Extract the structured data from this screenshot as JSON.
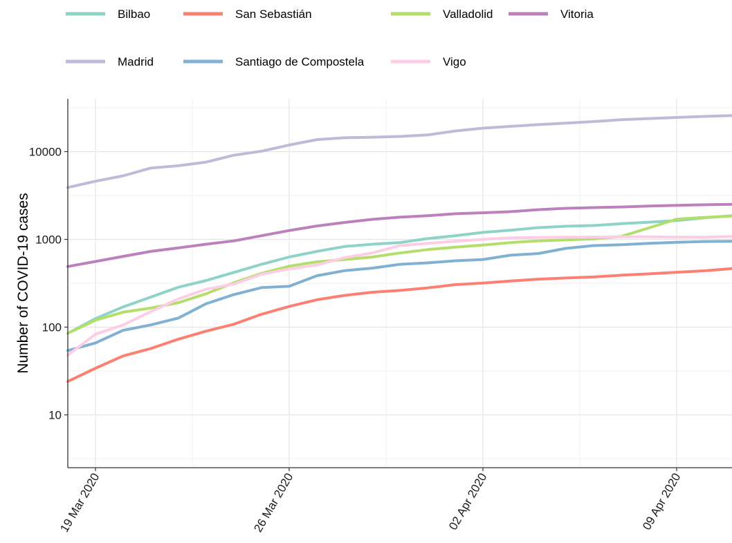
{
  "chart_data": {
    "type": "line",
    "title": "",
    "xlabel": "",
    "ylabel": "Number of COVID-19 cases",
    "y_scale": "log10",
    "ylim": [
      2.5,
      40000
    ],
    "xlim": [
      "2020-03-18",
      "2020-04-11"
    ],
    "grid": true,
    "legend_position": "top",
    "x_ticks": [
      "2020-03-19",
      "2020-03-26",
      "2020-04-02",
      "2020-04-09"
    ],
    "x_tick_labels": [
      "19 Mar 2020",
      "26 Mar 2020",
      "02 Apr 2020",
      "09 Apr 2020"
    ],
    "y_ticks": [
      10,
      100,
      1000,
      10000
    ],
    "y_tick_labels": [
      "10",
      "100",
      "1000",
      "10000"
    ],
    "dates": [
      "2020-03-18",
      "2020-03-19",
      "2020-03-20",
      "2020-03-21",
      "2020-03-22",
      "2020-03-23",
      "2020-03-24",
      "2020-03-25",
      "2020-03-26",
      "2020-03-27",
      "2020-03-28",
      "2020-03-29",
      "2020-03-30",
      "2020-03-31",
      "2020-04-01",
      "2020-04-02",
      "2020-04-03",
      "2020-04-04",
      "2020-04-05",
      "2020-04-06",
      "2020-04-07",
      "2020-04-08",
      "2020-04-09",
      "2020-04-10",
      "2020-04-11"
    ],
    "series": [
      {
        "name": "Bilbao",
        "color": "#8dd3c7",
        "values": [
          85,
          125,
          170,
          220,
          285,
          340,
          420,
          520,
          630,
          730,
          830,
          880,
          920,
          1020,
          1100,
          1200,
          1270,
          1360,
          1410,
          1440,
          1510,
          1570,
          1640,
          1760,
          1860
        ]
      },
      {
        "name": "San Sebastián",
        "color": "#fb8072",
        "values": [
          24,
          34,
          47,
          57,
          73,
          90,
          108,
          140,
          172,
          205,
          230,
          250,
          262,
          280,
          305,
          318,
          335,
          352,
          363,
          373,
          390,
          405,
          422,
          438,
          465
        ]
      },
      {
        "name": "Valladolid",
        "color": "#b3de69",
        "values": [
          85,
          120,
          148,
          165,
          190,
          240,
          320,
          410,
          495,
          555,
          590,
          630,
          700,
          765,
          815,
          860,
          920,
          960,
          985,
          1010,
          1080,
          1350,
          1700,
          1780,
          1850
        ]
      },
      {
        "name": "Vitoria",
        "color": "#bc80bd",
        "values": [
          490,
          560,
          640,
          730,
          800,
          880,
          960,
          1100,
          1260,
          1420,
          1560,
          1690,
          1790,
          1860,
          1960,
          2010,
          2070,
          2180,
          2260,
          2300,
          2340,
          2400,
          2440,
          2480,
          2510
        ]
      },
      {
        "name": "Madrid",
        "color": "#bebada",
        "values": [
          3900,
          4600,
          5300,
          6500,
          6900,
          7600,
          9100,
          10100,
          11900,
          13700,
          14400,
          14600,
          14900,
          15500,
          17200,
          18500,
          19400,
          20300,
          21100,
          22000,
          23100,
          23800,
          24500,
          25200,
          25800
        ]
      },
      {
        "name": "Santiago de Compostela",
        "color": "#80b1d3",
        "values": [
          54,
          66,
          92,
          106,
          127,
          185,
          235,
          282,
          292,
          385,
          440,
          470,
          520,
          540,
          570,
          590,
          660,
          690,
          790,
          850,
          870,
          900,
          925,
          945,
          950
        ]
      },
      {
        "name": "Vigo",
        "color": "#fccde5",
        "values": [
          48,
          83,
          106,
          150,
          210,
          270,
          310,
          400,
          460,
          510,
          620,
          700,
          850,
          900,
          950,
          1000,
          1040,
          1050,
          1060,
          1060,
          1070,
          1070,
          1060,
          1060,
          1080
        ]
      }
    ]
  }
}
